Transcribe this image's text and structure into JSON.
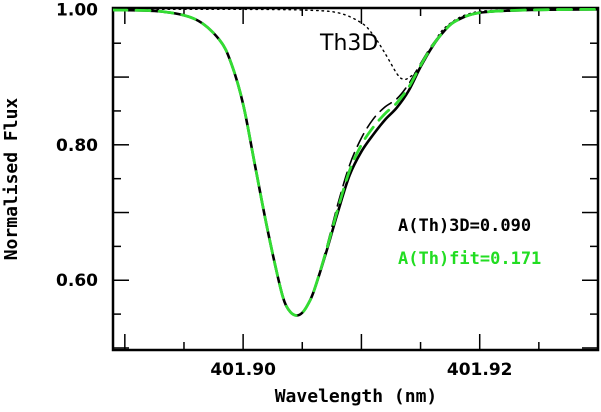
{
  "chart_data": {
    "type": "line",
    "xlabel": "Wavelength (nm)",
    "ylabel": "Normalised Flux",
    "xlim": [
      401.889,
      401.93
    ],
    "ylim": [
      0.497,
      1.002
    ],
    "x_tick_labels": [
      "401.90",
      "401.92"
    ],
    "y_tick_labels": [
      "0.60",
      "0.80",
      "1.00"
    ],
    "x_ticks": [
      401.9,
      401.92
    ],
    "y_ticks": [
      0.6,
      0.8,
      1.0
    ],
    "grid": false,
    "annotations": [
      {
        "text": "Th3D",
        "x": 401.9125,
        "y": 0.955
      },
      {
        "text": "A(Th)3D=0.090",
        "x": 401.9175,
        "y": 0.65,
        "color": "#000000"
      },
      {
        "text": "A(Th)fit=0.171",
        "x": 401.9175,
        "y": 0.6,
        "color": "#22dd22"
      }
    ],
    "series": [
      {
        "style": "solid",
        "color": "#000000",
        "x": [
          401.889,
          401.893,
          401.896,
          401.898,
          401.899,
          401.9,
          401.901,
          401.902,
          401.903,
          401.9035,
          401.904,
          401.9045,
          401.905,
          401.9055,
          401.906,
          401.907,
          401.908,
          401.909,
          401.91,
          401.911,
          401.912,
          401.913,
          401.914,
          401.915,
          401.916,
          401.917,
          401.918,
          401.92,
          401.924,
          401.93
        ],
        "values": [
          0.999,
          0.997,
          0.985,
          0.955,
          0.92,
          0.86,
          0.77,
          0.68,
          0.6,
          0.568,
          0.553,
          0.548,
          0.552,
          0.565,
          0.585,
          0.64,
          0.7,
          0.755,
          0.79,
          0.815,
          0.837,
          0.855,
          0.88,
          0.915,
          0.945,
          0.968,
          0.983,
          0.995,
          0.999,
          1.0
        ]
      },
      {
        "style": "long-dash",
        "color": "#000000",
        "x": [
          401.889,
          401.893,
          401.896,
          401.898,
          401.899,
          401.9,
          401.901,
          401.902,
          401.903,
          401.9035,
          401.904,
          401.9045,
          401.905,
          401.9055,
          401.906,
          401.907,
          401.908,
          401.909,
          401.91,
          401.911,
          401.912,
          401.913,
          401.914,
          401.915,
          401.916,
          401.917,
          401.918,
          401.92,
          401.924,
          401.93
        ],
        "values": [
          0.999,
          0.997,
          0.985,
          0.955,
          0.92,
          0.86,
          0.77,
          0.68,
          0.6,
          0.568,
          0.553,
          0.548,
          0.552,
          0.565,
          0.585,
          0.645,
          0.712,
          0.77,
          0.81,
          0.838,
          0.856,
          0.868,
          0.89,
          0.92,
          0.948,
          0.969,
          0.984,
          0.995,
          0.999,
          1.0
        ]
      },
      {
        "style": "dashed",
        "color": "#33dd33",
        "x": [
          401.889,
          401.893,
          401.896,
          401.898,
          401.899,
          401.9,
          401.901,
          401.902,
          401.903,
          401.9035,
          401.904,
          401.9045,
          401.905,
          401.9055,
          401.906,
          401.907,
          401.908,
          401.909,
          401.91,
          401.911,
          401.912,
          401.913,
          401.914,
          401.915,
          401.916,
          401.917,
          401.918,
          401.92,
          401.924,
          401.93
        ],
        "values": [
          0.999,
          0.997,
          0.985,
          0.955,
          0.92,
          0.86,
          0.77,
          0.68,
          0.6,
          0.568,
          0.553,
          0.548,
          0.552,
          0.565,
          0.585,
          0.642,
          0.705,
          0.762,
          0.8,
          0.826,
          0.846,
          0.862,
          0.885,
          0.917,
          0.946,
          0.968,
          0.983,
          0.995,
          0.999,
          1.0
        ]
      },
      {
        "style": "dotted",
        "color": "#000000",
        "x": [
          401.889,
          401.895,
          401.9,
          401.905,
          401.908,
          401.91,
          401.911,
          401.912,
          401.913,
          401.9135,
          401.914,
          401.915,
          401.916,
          401.917,
          401.919,
          401.922,
          401.93
        ],
        "values": [
          1.0,
          1.0,
          1.0,
          0.999,
          0.995,
          0.98,
          0.962,
          0.935,
          0.905,
          0.897,
          0.899,
          0.915,
          0.945,
          0.972,
          0.993,
          0.999,
          1.0
        ]
      }
    ]
  }
}
